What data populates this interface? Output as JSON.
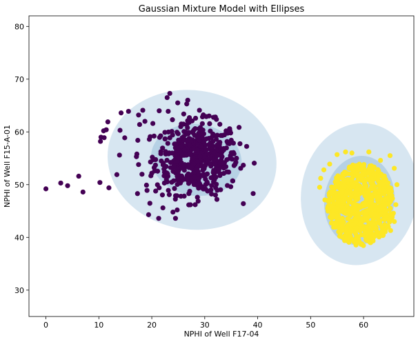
{
  "chart_data": {
    "type": "scatter",
    "title": "Gaussian Mixture Model with Ellipses",
    "xlabel": "NPHI of Well F17-04",
    "ylabel": "NPHI of Well F15-A-01",
    "xlim": [
      -3.2,
      69.5
    ],
    "ylim": [
      25,
      82
    ],
    "xticks": [
      0,
      10,
      20,
      30,
      40,
      50,
      60
    ],
    "yticks": [
      30,
      40,
      50,
      60,
      70,
      80
    ],
    "grid": false,
    "ellipse_color": "#1f77b4",
    "ellipse_alpha": 0.18,
    "ellipses": [
      {
        "cluster": 0,
        "cx": 27.6,
        "cy": 54.7,
        "rx": 16.0,
        "ry": 13.2,
        "angle": 8
      },
      {
        "cluster": 0,
        "cx": 28.4,
        "cy": 54.7,
        "rx": 8.6,
        "ry": 6.8,
        "angle": 8
      },
      {
        "cluster": 1,
        "cx": 59.2,
        "cy": 48.2,
        "rx": 11.0,
        "ry": 13.5,
        "angle": 8
      },
      {
        "cluster": 1,
        "cx": 59.2,
        "cy": 47.0,
        "rx": 6.6,
        "ry": 8.5,
        "angle": 8
      }
    ],
    "series": [
      {
        "color": "#440154",
        "center": [
          28.5,
          55.0
        ],
        "spread": [
          4.6,
          4.2
        ],
        "count": 520,
        "values": [
          [
            0.0,
            49.2
          ],
          [
            2.8,
            50.3
          ],
          [
            4.1,
            49.8
          ],
          [
            6.2,
            51.6
          ],
          [
            7.0,
            48.6
          ],
          [
            10.2,
            50.4
          ],
          [
            11.9,
            49.4
          ],
          [
            13.4,
            51.9
          ],
          [
            13.9,
            55.6
          ],
          [
            14.0,
            60.3
          ],
          [
            14.2,
            63.6
          ],
          [
            15.6,
            63.9
          ],
          [
            10.3,
            58.2
          ],
          [
            10.4,
            59.0
          ],
          [
            11.0,
            58.9
          ],
          [
            10.9,
            60.2
          ],
          [
            11.4,
            60.4
          ],
          [
            11.7,
            61.9
          ],
          [
            17.5,
            63.2
          ],
          [
            17.7,
            61.4
          ],
          [
            18.3,
            64.1
          ],
          [
            18.7,
            62.0
          ],
          [
            17.1,
            55.3
          ],
          [
            17.5,
            53.8
          ],
          [
            17.3,
            48.3
          ],
          [
            19.0,
            49.9
          ],
          [
            19.1,
            48.9
          ],
          [
            19.4,
            44.3
          ],
          [
            21.3,
            43.6
          ],
          [
            22.1,
            45.6
          ],
          [
            24.8,
            45.2
          ],
          [
            24.0,
            44.8
          ],
          [
            25.5,
            47.8
          ],
          [
            27.0,
            48.3
          ],
          [
            28.2,
            46.2
          ],
          [
            22.9,
            66.5
          ],
          [
            23.4,
            67.3
          ],
          [
            24.9,
            65.5
          ],
          [
            26.6,
            65.3
          ],
          [
            23.1,
            63.9
          ],
          [
            29.0,
            64.1
          ],
          [
            27.1,
            62.7
          ],
          [
            19.7,
            59.1
          ],
          [
            20.1,
            55.2
          ],
          [
            21.4,
            49.4
          ],
          [
            21.4,
            64.0
          ],
          [
            20.2,
            61.6
          ],
          [
            30.3,
            62.9
          ],
          [
            34.7,
            60.6
          ],
          [
            36.0,
            55.0
          ],
          [
            35.3,
            50.7
          ],
          [
            34.0,
            53.4
          ],
          [
            32.3,
            47.2
          ],
          [
            29.5,
            49.6
          ],
          [
            31.2,
            51.3
          ]
        ]
      },
      {
        "color": "#fde725",
        "center": [
          59.5,
          46.5
        ],
        "spread": [
          3.3,
          3.8
        ],
        "count": 650,
        "values": [
          [
            51.7,
            49.5
          ],
          [
            51.9,
            51.2
          ],
          [
            52.5,
            52.8
          ],
          [
            53.6,
            53.9
          ],
          [
            55.0,
            55.7
          ],
          [
            56.6,
            56.2
          ],
          [
            57.8,
            56.0
          ],
          [
            61.0,
            56.2
          ],
          [
            63.2,
            54.6
          ],
          [
            65.0,
            55.5
          ],
          [
            65.8,
            53.1
          ],
          [
            66.3,
            50.0
          ],
          [
            66.1,
            46.2
          ],
          [
            65.8,
            43.0
          ],
          [
            65.1,
            41.3
          ],
          [
            63.7,
            40.4
          ],
          [
            61.3,
            40.1
          ],
          [
            58.5,
            40.7
          ],
          [
            56.0,
            42.2
          ],
          [
            54.2,
            44.3
          ],
          [
            53.2,
            45.5
          ],
          [
            52.7,
            47.1
          ],
          [
            54.9,
            51.3
          ],
          [
            57.7,
            47.7
          ],
          [
            60.5,
            44.6
          ]
        ]
      }
    ]
  }
}
